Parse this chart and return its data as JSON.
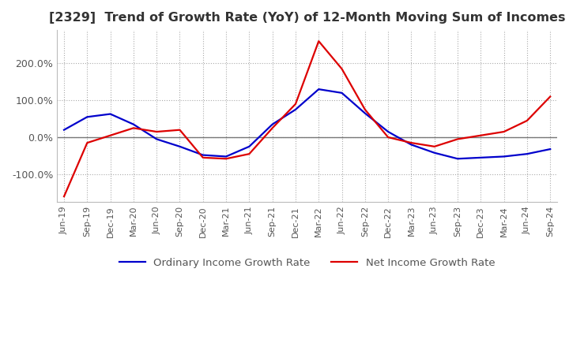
{
  "title": "[2329]  Trend of Growth Rate (YoY) of 12-Month Moving Sum of Incomes",
  "title_fontsize": 11.5,
  "ylim": [
    -175,
    290
  ],
  "yticks": [
    -100.0,
    0.0,
    100.0,
    200.0
  ],
  "ytick_labels": [
    "-100.0%",
    "0.0%",
    "100.0%",
    "200.0%"
  ],
  "grid_color": "#aaaaaa",
  "line1_color": "#0000cc",
  "line2_color": "#dd0000",
  "line1_label": "Ordinary Income Growth Rate",
  "line2_label": "Net Income Growth Rate",
  "x_labels": [
    "Jun-19",
    "Sep-19",
    "Dec-19",
    "Mar-20",
    "Jun-20",
    "Sep-20",
    "Dec-20",
    "Mar-21",
    "Jun-21",
    "Sep-21",
    "Dec-21",
    "Mar-22",
    "Jun-22",
    "Sep-22",
    "Dec-22",
    "Mar-23",
    "Jun-23",
    "Sep-23",
    "Dec-23",
    "Mar-24",
    "Jun-24",
    "Sep-24"
  ],
  "ordinary_income_growth": [
    20,
    55,
    63,
    35,
    -5,
    -25,
    -48,
    -52,
    -25,
    35,
    75,
    130,
    120,
    65,
    15,
    -20,
    -42,
    -58,
    -55,
    -52,
    -45,
    -32
  ],
  "net_income_growth": [
    -160,
    -15,
    5,
    25,
    15,
    20,
    -55,
    -58,
    -45,
    25,
    90,
    260,
    185,
    75,
    0,
    -15,
    -25,
    -5,
    5,
    15,
    45,
    110
  ]
}
